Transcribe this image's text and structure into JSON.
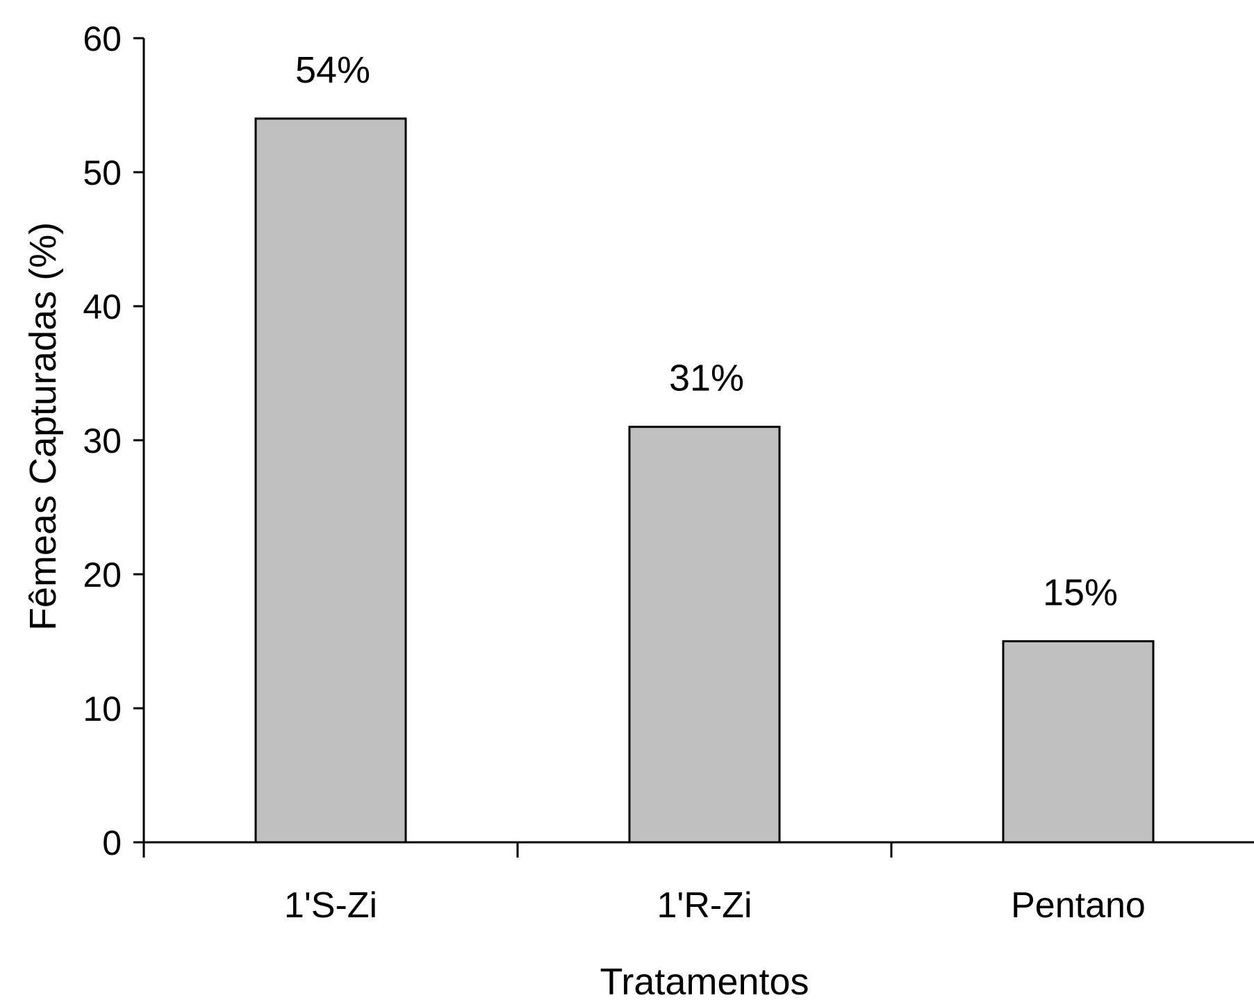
{
  "chart_data": {
    "type": "bar",
    "title": "",
    "xlabel": "Tratamentos",
    "ylabel": "Fêmeas Capturadas (%)",
    "categories": [
      "1'S-Zi",
      "1'R-Zi",
      "Pentano"
    ],
    "values": [
      54,
      31,
      15
    ],
    "data_labels": [
      "54%",
      "31%",
      "15%"
    ],
    "ylim": [
      0,
      60
    ],
    "yticks": [
      0,
      10,
      20,
      30,
      40,
      50,
      60
    ],
    "ytick_labels": [
      "0",
      "10",
      "20",
      "30",
      "40",
      "50",
      "60"
    ],
    "grid": false,
    "legend": "none",
    "colors": {
      "bar_fill": "#c0c0c0",
      "bar_stroke": "#000000",
      "axis": "#000000"
    }
  }
}
